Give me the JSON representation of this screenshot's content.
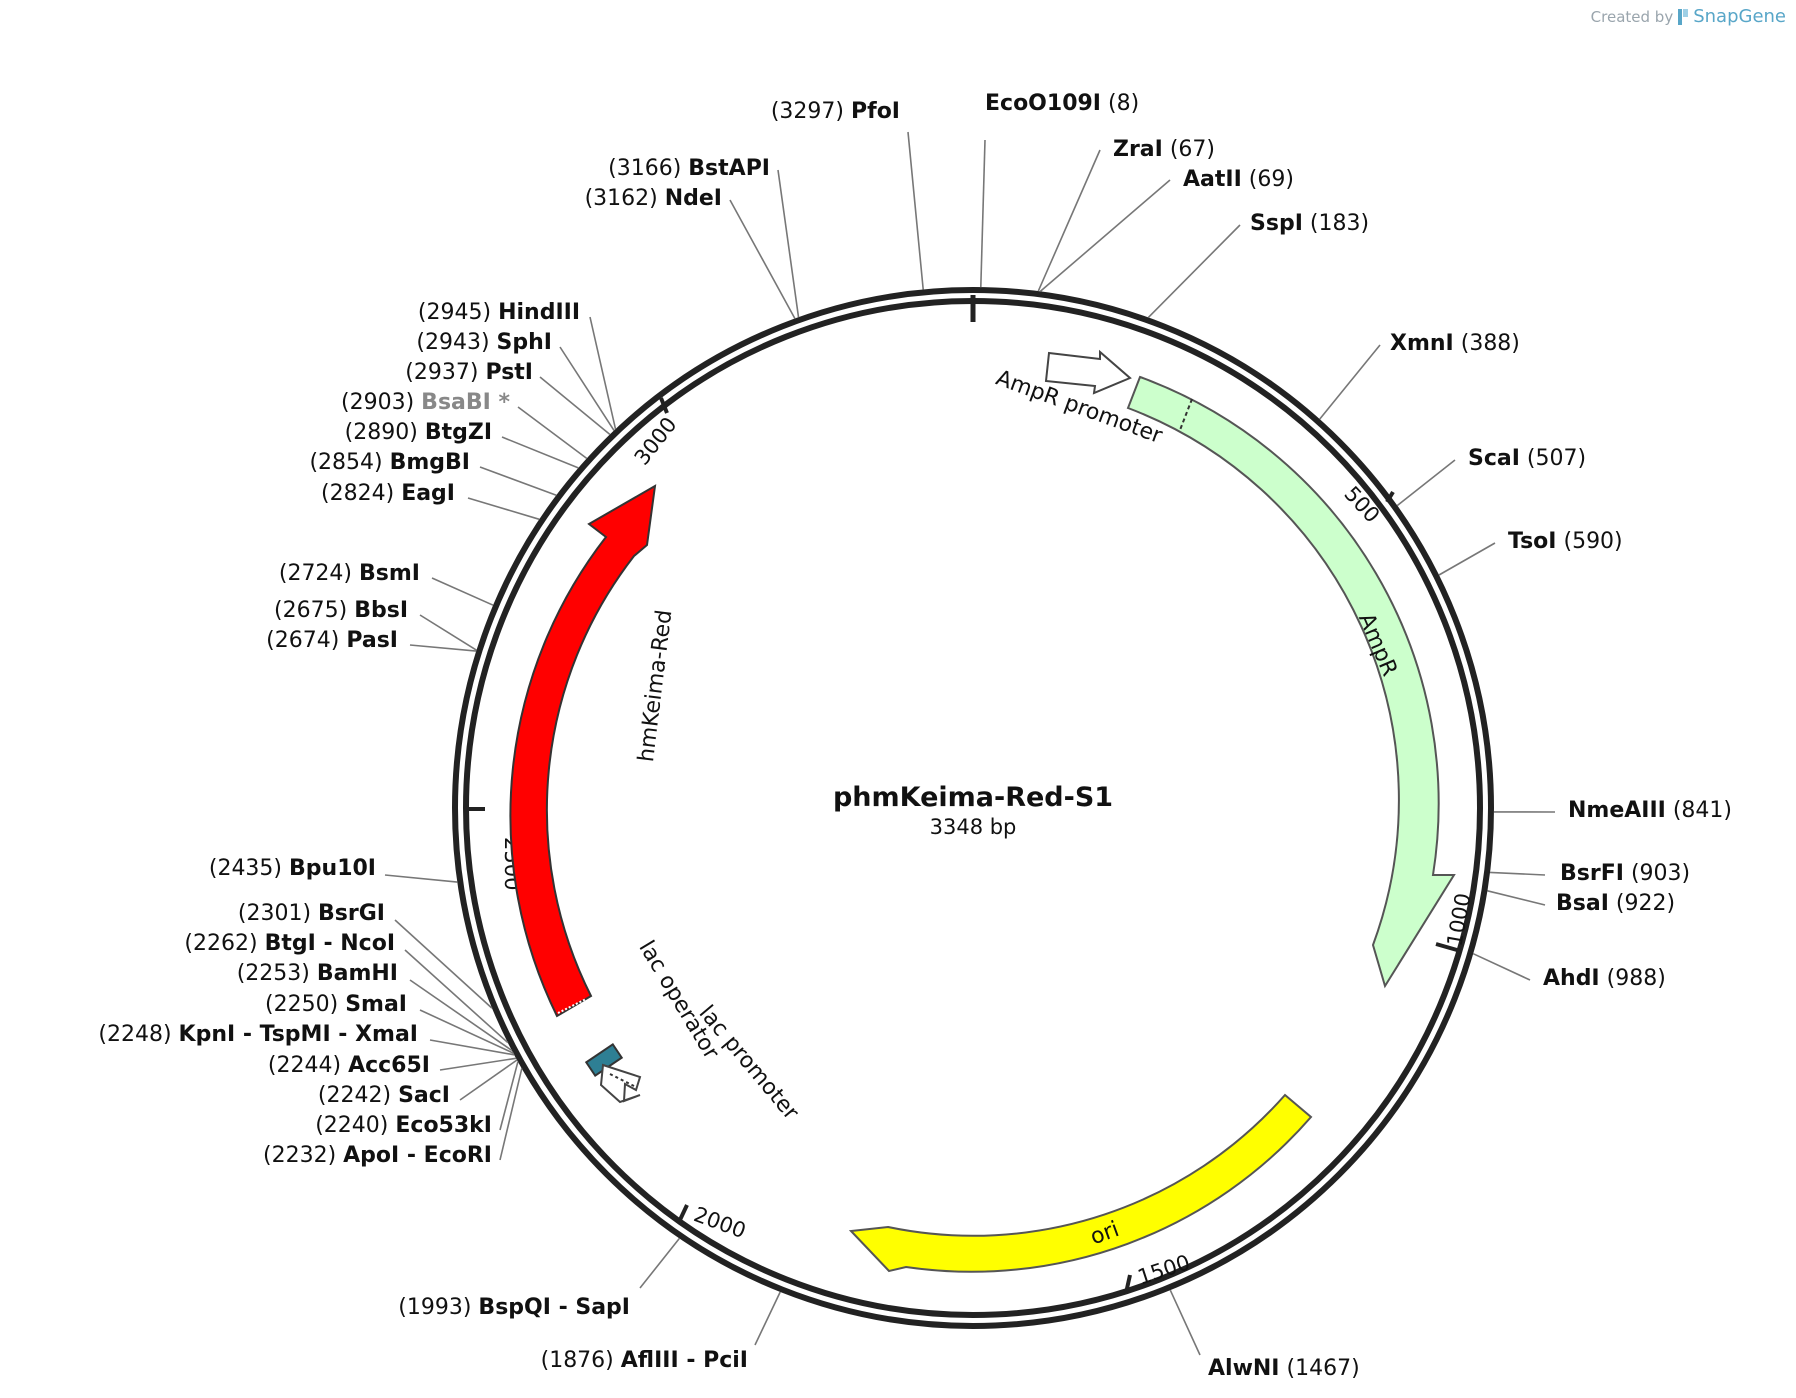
{
  "credit": {
    "created_by": "Created by",
    "brand": "SnapGene"
  },
  "plasmid": {
    "name": "phmKeima-Red-S1",
    "length_label": "3348 bp",
    "length_bp": 3348
  },
  "tick_labels": [
    "500",
    "1000",
    "1500",
    "2000",
    "2500",
    "3000"
  ],
  "features": [
    {
      "name": "AmpR promoter",
      "type": "promoter-arrow"
    },
    {
      "name": "AmpR",
      "color": "#ccffcc",
      "type": "arrow"
    },
    {
      "name": "ori",
      "color": "#ffff00",
      "type": "arrow"
    },
    {
      "name": "lac promoter",
      "type": "promoter-arrow"
    },
    {
      "name": "lac operator",
      "color": "#2e7f94",
      "type": "box"
    },
    {
      "name": "hmKeima-Red",
      "color": "#ff0000",
      "type": "arrow"
    }
  ],
  "sites": [
    {
      "pos": "(8)",
      "names": [
        "EcoO109I"
      ]
    },
    {
      "pos": "(67)",
      "names": [
        "ZraI"
      ]
    },
    {
      "pos": "(69)",
      "names": [
        "AatII"
      ]
    },
    {
      "pos": "(183)",
      "names": [
        "SspI"
      ]
    },
    {
      "pos": "(388)",
      "names": [
        "XmnI"
      ]
    },
    {
      "pos": "(507)",
      "names": [
        "ScaI"
      ]
    },
    {
      "pos": "(590)",
      "names": [
        "TsoI"
      ]
    },
    {
      "pos": "(841)",
      "names": [
        "NmeAIII"
      ]
    },
    {
      "pos": "(903)",
      "names": [
        "BsrFI"
      ]
    },
    {
      "pos": "(922)",
      "names": [
        "BsaI"
      ]
    },
    {
      "pos": "(988)",
      "names": [
        "AhdI"
      ]
    },
    {
      "pos": "(1467)",
      "names": [
        "AlwNI"
      ]
    },
    {
      "pos": "(1876)",
      "names": [
        "AflIII",
        "PciI"
      ]
    },
    {
      "pos": "(1993)",
      "names": [
        "BspQI",
        "SapI"
      ]
    },
    {
      "pos": "(2232)",
      "names": [
        "ApoI",
        "EcoRI"
      ]
    },
    {
      "pos": "(2240)",
      "names": [
        "Eco53kI"
      ]
    },
    {
      "pos": "(2242)",
      "names": [
        "SacI"
      ]
    },
    {
      "pos": "(2244)",
      "names": [
        "Acc65I"
      ]
    },
    {
      "pos": "(2248)",
      "names": [
        "KpnI",
        "TspMI",
        "XmaI"
      ]
    },
    {
      "pos": "(2250)",
      "names": [
        "SmaI"
      ]
    },
    {
      "pos": "(2253)",
      "names": [
        "BamHI"
      ]
    },
    {
      "pos": "(2262)",
      "names": [
        "BtgI",
        "NcoI"
      ]
    },
    {
      "pos": "(2301)",
      "names": [
        "BsrGI"
      ]
    },
    {
      "pos": "(2435)",
      "names": [
        "Bpu10I"
      ]
    },
    {
      "pos": "(2674)",
      "names": [
        "PasI"
      ]
    },
    {
      "pos": "(2675)",
      "names": [
        "BbsI"
      ]
    },
    {
      "pos": "(2724)",
      "names": [
        "BsmI"
      ]
    },
    {
      "pos": "(2824)",
      "names": [
        "EagI"
      ]
    },
    {
      "pos": "(2854)",
      "names": [
        "BmgBI"
      ]
    },
    {
      "pos": "(2890)",
      "names": [
        "BtgZI"
      ]
    },
    {
      "pos": "(2903)",
      "names": [
        "BsaBI"
      ],
      "note": "*",
      "color": "#888888"
    },
    {
      "pos": "(2937)",
      "names": [
        "PstI"
      ]
    },
    {
      "pos": "(2943)",
      "names": [
        "SphI"
      ]
    },
    {
      "pos": "(2945)",
      "names": [
        "HindIII"
      ]
    },
    {
      "pos": "(3162)",
      "names": [
        "NdeI"
      ]
    },
    {
      "pos": "(3166)",
      "names": [
        "BstAPI"
      ]
    },
    {
      "pos": "(3297)",
      "names": [
        "PfoI"
      ]
    }
  ]
}
